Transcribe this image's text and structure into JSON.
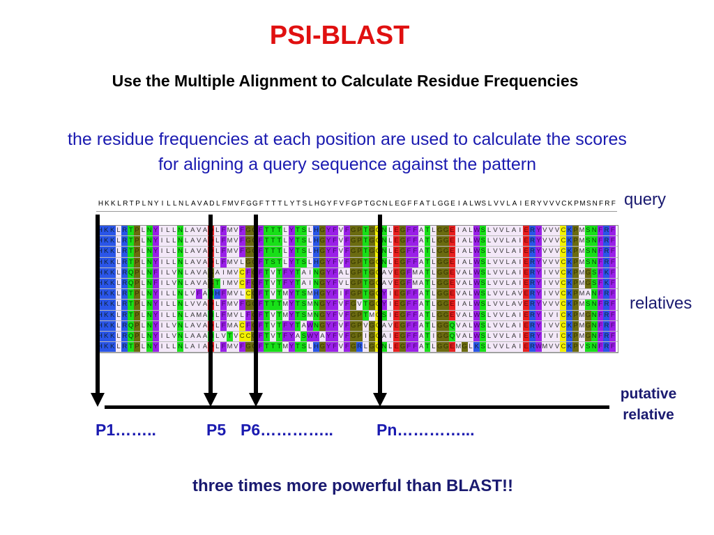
{
  "title": "PSI-BLAST",
  "subtitle": "Use the Multiple Alignment to Calculate Residue Frequencies",
  "description": [
    "the residue frequencies at each position are used  to calculate the scores",
    "for aligning a query sequence against the pattern"
  ],
  "query_label": "query",
  "relatives_label": "relatives",
  "putative_label": [
    "putative",
    "relative"
  ],
  "query": "HKKLRTPLNYILLNLAVADLFMVFGGFTTTLYTSLHGYFVFGPTGCNLEGFFATLGGEIALWSLVVLAIERYVVVCKPMSNFRF",
  "alignment": [
    "HKKLRTPLNYILLNLAVADLFMVFGGFTTTLYTSLHGYFVFGPTGCNLEGFFATLGGEIALWSLVVLAIERYVVVCKPMSNFRF",
    "HKKLRTPLNYILLNLAVADLFMVFGGFTTTLYTSLHGYFVFGPTGCNLEGFFATLGGEIALWSLVVLAIERYVVVCKPMSNFRF",
    "HKKLRTPLNYILLNLAVADLFMVFGGFTTTLYTSLHGYFVFGPTGCNLEGFFATLGGEIALWSLVVLAIERYVVVCKPMSNFRF",
    "HKKLRTPLNYILLNLAVADLFMVLGGFTSTLYTSLHGYFVFGPTGCNLEGFFATLGGEIALWSLVVLAIERYVVVCKPMSNFRF",
    "HKKLRQPLNFILVNLAVAGAIMVCFGFTVTFYTAINGYFALGPTGCAVEGFMATLGGEVALWSLVVLAIERYIVVCKPMGSFKF",
    "HKKLRQPLNFILVNLAVAGTIMVCFGFTVTFYTAINGYFVLGPTGCAVEGFMATLGGEVALWSLVVLAIERYIVVCKPMGSFKF",
    "HKKLRTPLNYILLNLVFANHFMVLCGFTVTMYTSMHGYFIFGPTGCYIEGFFATLGGEVALWSLVVLAVERYIVVCKPMANFRF",
    "HKKLRTPLNYILLNLVVADLFMVFGGFTTTMYTSMNGYFVFGVTGCYIEGFFATLGGEIALWSLVVLAVERYVVVCKPMSNFRF",
    "HKKLRTPLNYILLNLAMANLFMVLFGFTVTMYTSMNGYFVFGPTMCSIEGFFATLGGEVALWSLVVLAIERYIVICKPMGNFRF",
    "HKKLRQPLNYILVNLAVADLFMACFGFTVTFYTAWNGYFVFGPVGCAVEGFFATLGGQVALWSLVVLAIERYIVVCKPMGNFRF",
    "HKKLRQPLNYILVNLAAANLVTVCCGFTVTFYASWYAYFVFGPIGCAIEGFFATIGGQVALWSLVVLAIERYIVICKPMGNFRF",
    "HKKLRTPLNYILLNLAIADLFMVFGGFTTTMYTSLHGYFVFGRLGCNLEGFFATLGGEMGLKSLVVLAIERWMVVCKPVSNFRF"
  ],
  "positions": [
    "P1……..",
    "P5",
    "P6…………..",
    "Pn…………..."
  ],
  "conclusion": "three times more powerful than BLAST!!",
  "colors": {
    "title": "#e01010",
    "text": "#1a1ab0",
    "basic": "#2a55e8",
    "polar": "#18e018",
    "glycine_proline": "#6b6b10",
    "aromatic": "#9a20e8",
    "acidic": "#e82020",
    "cysteine": "#f2f000",
    "hydrophobic": "#f3e8f8"
  }
}
